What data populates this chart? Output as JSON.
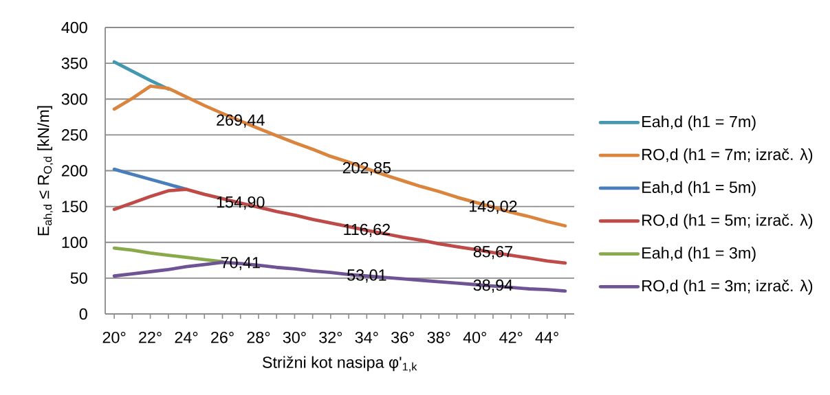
{
  "chart_data": {
    "type": "line",
    "categories": [
      "20°",
      null,
      "22°",
      null,
      "24°",
      null,
      "26°",
      null,
      "28°",
      null,
      "30°",
      null,
      "32°",
      null,
      "34°",
      null,
      "36°",
      null,
      "38°",
      null,
      "40°",
      null,
      "42°",
      null,
      "44°",
      null
    ],
    "xlabel": "Strižni kot nasipa  φ'$_{1,k}$",
    "ylabel": "E$_{ah,d}$ ≤ R$_{O,d}$  [kN/m]",
    "ylim": [
      0,
      400
    ],
    "yticks": [
      0,
      50,
      100,
      150,
      200,
      250,
      300,
      350,
      400
    ],
    "grid": "y",
    "legend": "right",
    "marker": "none",
    "line_style": "solid",
    "series": [
      {
        "name": "Eah,d (h1 = 7m)",
        "color": "#4198AF",
        "values": [
          352,
          339,
          326,
          314,
          null,
          null,
          null,
          null,
          null,
          null,
          null,
          null,
          null,
          null,
          null,
          null,
          null,
          null,
          null,
          null,
          null,
          null,
          null,
          null,
          null,
          null
        ]
      },
      {
        "name": "RO,d (h1 = 7m; izrač. λ)",
        "color": "#DB843D",
        "values": [
          286,
          301,
          318,
          315,
          303,
          291,
          280,
          269.44,
          259,
          249,
          239,
          230,
          220,
          212,
          202.85,
          194,
          186,
          178,
          171,
          163,
          156,
          149.02,
          142,
          136,
          129,
          123
        ],
        "value_labels": [
          null,
          null,
          null,
          null,
          null,
          null,
          null,
          "269,44",
          null,
          null,
          null,
          null,
          null,
          null,
          "202,85",
          null,
          null,
          null,
          null,
          null,
          null,
          "149,02",
          null,
          null,
          null,
          null
        ]
      },
      {
        "name": "Eah,d (h1 = 5m)",
        "color": "#4A7EBB",
        "values": [
          202,
          195,
          188,
          181,
          174,
          null,
          null,
          null,
          null,
          null,
          null,
          null,
          null,
          null,
          null,
          null,
          null,
          null,
          null,
          null,
          null,
          null,
          null,
          null,
          null,
          null
        ]
      },
      {
        "name": "RO,d (h1 = 5m; izrač. λ)",
        "color": "#BE4B48",
        "values": [
          146,
          155,
          164,
          172,
          174,
          167,
          161,
          154.9,
          149,
          143,
          138,
          132,
          127,
          122,
          116.62,
          112,
          107,
          103,
          98,
          94,
          90,
          85.67,
          82,
          78,
          74,
          71
        ],
        "value_labels": [
          null,
          null,
          null,
          null,
          null,
          null,
          null,
          "154,90",
          null,
          null,
          null,
          null,
          null,
          null,
          "116,62",
          null,
          null,
          null,
          null,
          null,
          null,
          "85,67",
          null,
          null,
          null,
          null
        ]
      },
      {
        "name": "Eah,d (h1 = 3m)",
        "color": "#88AA4A",
        "values": [
          92,
          89,
          85,
          82,
          79,
          76,
          73,
          null,
          null,
          null,
          null,
          null,
          null,
          null,
          null,
          null,
          null,
          null,
          null,
          null,
          null,
          null,
          null,
          null,
          null,
          null
        ]
      },
      {
        "name": "RO,d (h1 = 3m; izrač. λ)",
        "color": "#6E5494",
        "values": [
          53,
          56,
          59,
          62,
          66,
          69,
          72,
          70.41,
          68,
          65,
          63,
          60,
          58,
          55,
          53.01,
          51,
          49,
          47,
          45,
          43,
          41,
          38.94,
          37,
          35,
          34,
          32
        ],
        "value_labels": [
          null,
          null,
          null,
          null,
          null,
          null,
          null,
          "70,41",
          null,
          null,
          null,
          null,
          null,
          null,
          "53,01",
          null,
          null,
          null,
          null,
          null,
          null,
          "38,94",
          null,
          null,
          null,
          null
        ]
      }
    ]
  }
}
